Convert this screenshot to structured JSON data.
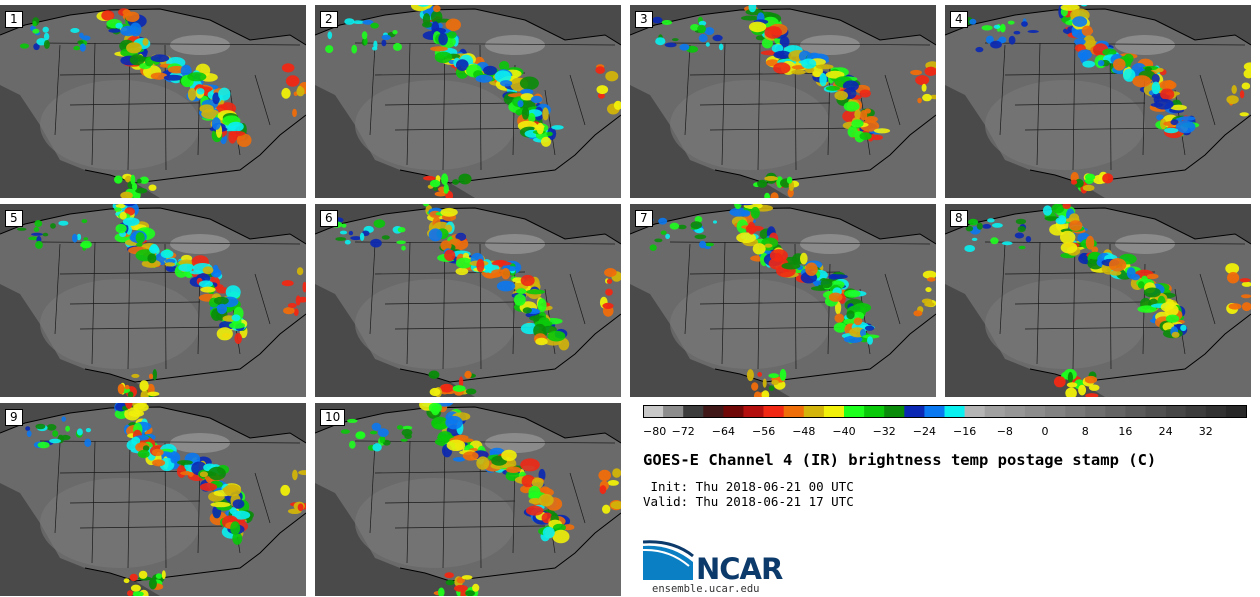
{
  "panels": [
    {
      "label": "1"
    },
    {
      "label": "2"
    },
    {
      "label": "3"
    },
    {
      "label": "4"
    },
    {
      "label": "5"
    },
    {
      "label": "6"
    },
    {
      "label": "7"
    },
    {
      "label": "8"
    },
    {
      "label": "9"
    },
    {
      "label": "10"
    }
  ],
  "colorbar": {
    "tick_labels": [
      "-80",
      "-72",
      "-64",
      "-56",
      "-48",
      "-40",
      "-32",
      "-24",
      "-16",
      "-8",
      "0",
      "8",
      "16",
      "24",
      "32"
    ],
    "colors": [
      "#c8c8c8",
      "#8c8c8c",
      "#3c3c3c",
      "#401818",
      "#700808",
      "#b40f0f",
      "#f02814",
      "#f06e0a",
      "#d2b40a",
      "#f0f00a",
      "#1eff1e",
      "#0ac80a",
      "#0a8c0a",
      "#0a28b4",
      "#0a78f0",
      "#0af0f0",
      "#b4b4b4",
      "#a0a0a0",
      "#969696",
      "#8c8c8c",
      "#828282",
      "#787878",
      "#6e6e6e",
      "#646464",
      "#5a5a5a",
      "#505050",
      "#464646",
      "#3c3c3c",
      "#323232",
      "#282828"
    ]
  },
  "title": "GOES-E Channel 4 (IR) brightness temp postage stamp (C)",
  "init_line": " Init: Thu 2018-06-21 00 UTC",
  "valid_line": "Valid: Thu 2018-06-21 17 UTC",
  "logo": {
    "text": "NCAR",
    "url": "ensemble.ucar.edu"
  }
}
